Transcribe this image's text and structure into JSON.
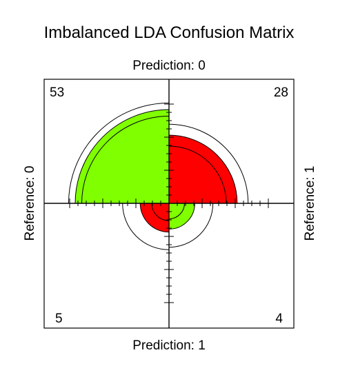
{
  "chart_data": {
    "type": "fourfold",
    "title": "Imbalanced LDA Confusion Matrix",
    "top_label": "Prediction: 0",
    "bottom_label": "Prediction: 1",
    "left_label": "Reference: 0",
    "right_label": "Reference: 1",
    "cells": [
      {
        "position": "top-left",
        "prediction": "0",
        "reference": "0",
        "count": 53,
        "label": "53",
        "kind": "correct"
      },
      {
        "position": "top-right",
        "prediction": "0",
        "reference": "1",
        "count": 28,
        "label": "28",
        "kind": "error"
      },
      {
        "position": "bottom-left",
        "prediction": "1",
        "reference": "0",
        "count": 5,
        "label": "5",
        "kind": "error"
      },
      {
        "position": "bottom-right",
        "prediction": "1",
        "reference": "1",
        "count": 4,
        "label": "4",
        "kind": "correct"
      }
    ],
    "confidence_rings": true,
    "colors": {
      "correct": "#80ff00",
      "error": "#ff0000",
      "ring": "#000000",
      "background": "#ffffff"
    }
  }
}
